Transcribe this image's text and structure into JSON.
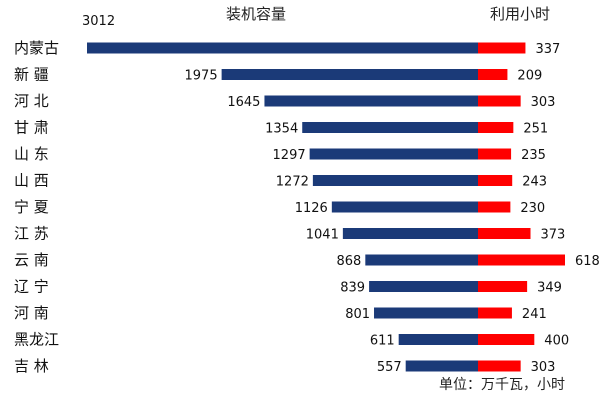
{
  "chart_data": {
    "type": "bar",
    "layout": "back-to-back horizontal bars",
    "categories": [
      "内蒙古",
      "新 疆",
      "河 北",
      "甘 肃",
      "山 东",
      "山 西",
      "宁 夏",
      "江 苏",
      "云 南",
      "辽 宁",
      "河 南",
      "黑龙江",
      "吉 林"
    ],
    "series": [
      {
        "name": "装机容量",
        "color": "#1b3a78",
        "direction": "left",
        "values": [
          3012,
          1975,
          1645,
          1354,
          1297,
          1272,
          1126,
          1041,
          868,
          839,
          801,
          611,
          557
        ]
      },
      {
        "name": "利用小时",
        "color": "#ff0000",
        "direction": "right",
        "values": [
          337,
          209,
          303,
          251,
          235,
          243,
          230,
          373,
          618,
          349,
          241,
          400,
          303
        ]
      }
    ],
    "unit_note": "单位：万千瓦，小时",
    "legend": "column headers above each side",
    "grid": false
  }
}
